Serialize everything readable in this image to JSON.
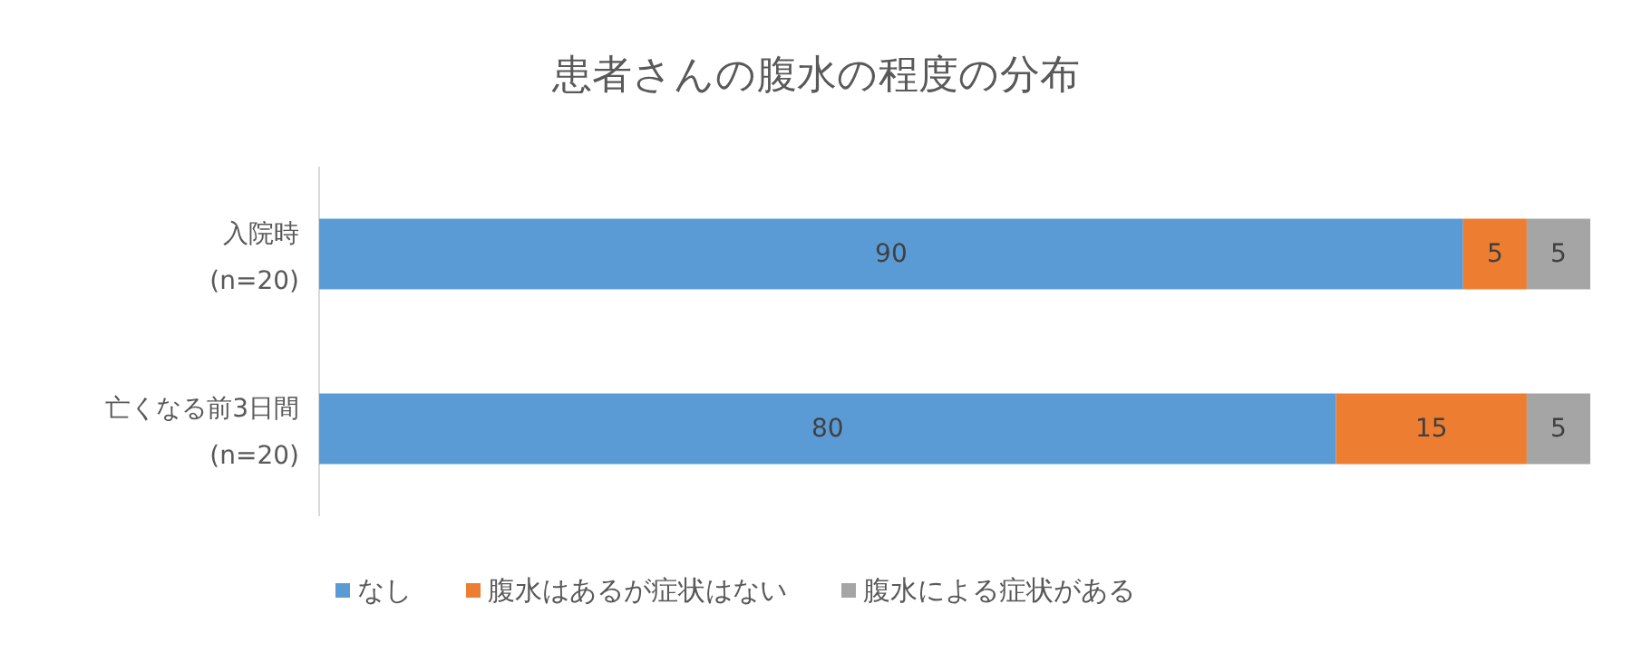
{
  "chart_data": {
    "type": "bar",
    "orientation": "horizontal",
    "stacked": true,
    "title": "患者さんの腹水の程度の分布",
    "categories": [
      "入院時 (n=20)",
      "亡くなる前3日間 (n=20)"
    ],
    "series": [
      {
        "name": "なし",
        "color": "#5b9bd5",
        "values": [
          90,
          80
        ]
      },
      {
        "name": "腹水はあるが症状はない",
        "color": "#ed7d31",
        "values": [
          5,
          15
        ]
      },
      {
        "name": "腹水による症状がある",
        "color": "#a5a5a5",
        "values": [
          5,
          5
        ]
      }
    ],
    "data_labels": true,
    "legend": "bottom"
  }
}
